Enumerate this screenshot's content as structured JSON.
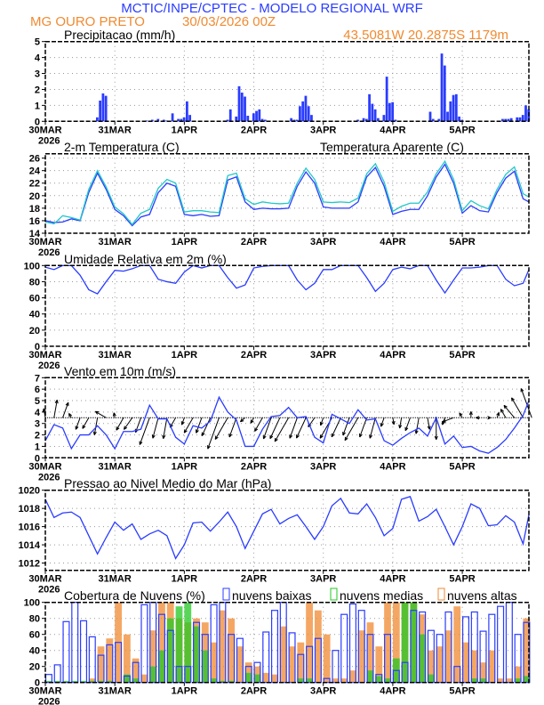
{
  "header": {
    "title": "MCTIC/INPE/CPTEC - MODELO REGIONAL WRF",
    "station": "MG OURO PRETO",
    "run": "30/03/2026 00Z",
    "location": "43.5081W 20.2875S 1179m",
    "title_color": "#2a3cff",
    "accent_color": "#f08a30"
  },
  "chart_data": [
    {
      "id": "precip",
      "type": "bar",
      "title": "Precipitacao (mm/h)",
      "ylim": [
        0,
        5
      ],
      "yticks": [
        0,
        1,
        2,
        3,
        4,
        5
      ],
      "x_unit": "hours since 30MAR 00Z",
      "x_step": 1,
      "color": "#2a3cff",
      "events": [
        [
          18,
          0.25
        ],
        [
          19,
          1.3
        ],
        [
          20,
          1.75
        ],
        [
          21,
          1.6
        ],
        [
          35,
          0.05
        ],
        [
          37,
          0.1
        ],
        [
          39,
          0.15
        ],
        [
          41,
          0.1
        ],
        [
          42,
          0.05
        ],
        [
          44,
          0.5
        ],
        [
          46,
          0.15
        ],
        [
          47,
          0.15
        ],
        [
          48,
          0.25
        ],
        [
          49,
          1.25
        ],
        [
          50,
          0.4
        ],
        [
          62,
          0.05
        ],
        [
          63,
          0.1
        ],
        [
          64,
          0.75
        ],
        [
          66,
          0.3
        ],
        [
          67,
          2.2
        ],
        [
          68,
          1.8
        ],
        [
          69,
          1.55
        ],
        [
          70,
          0.35
        ],
        [
          72,
          0.5
        ],
        [
          73,
          0.65
        ],
        [
          74,
          0.75
        ],
        [
          75,
          0.15
        ],
        [
          76,
          0.1
        ],
        [
          85,
          0.2
        ],
        [
          86,
          0.1
        ],
        [
          87,
          0.1
        ],
        [
          88,
          0.95
        ],
        [
          89,
          1.25
        ],
        [
          90,
          1.6
        ],
        [
          91,
          0.95
        ],
        [
          92,
          0.4
        ],
        [
          108,
          0.1
        ],
        [
          110,
          0.2
        ],
        [
          111,
          0.15
        ],
        [
          112,
          1.7
        ],
        [
          113,
          1.1
        ],
        [
          114,
          0.75
        ],
        [
          115,
          0.2
        ],
        [
          117,
          0.4
        ],
        [
          118,
          2.8
        ],
        [
          119,
          1.15
        ],
        [
          120,
          1.2
        ],
        [
          121,
          0.1
        ],
        [
          133,
          0.6
        ],
        [
          134,
          0.15
        ],
        [
          136,
          0.15
        ],
        [
          137,
          4.25
        ],
        [
          138,
          3.5
        ],
        [
          139,
          0.6
        ],
        [
          140,
          1.25
        ],
        [
          141,
          1.65
        ],
        [
          142,
          1.7
        ],
        [
          143,
          0.3
        ],
        [
          144,
          0.1
        ],
        [
          158,
          0.15
        ],
        [
          159,
          0.15
        ],
        [
          160,
          0.15
        ],
        [
          161,
          0.2
        ],
        [
          163,
          0.25
        ],
        [
          164,
          0.25
        ],
        [
          165,
          0.4
        ],
        [
          166,
          1.0
        ],
        [
          167,
          0.75
        ]
      ]
    },
    {
      "id": "temp",
      "type": "line",
      "title": "2-m Temperatura (C)",
      "ylim": [
        14,
        26.7
      ],
      "yticks": [
        14,
        16,
        18,
        20,
        22,
        24,
        26
      ],
      "x_step": 3,
      "series": [
        {
          "name": "Temperatura",
          "color": "#2a3cff",
          "values": [
            16,
            15.7,
            15.8,
            16.3,
            16,
            20.5,
            23.6,
            21,
            17.8,
            16.8,
            15.2,
            16.6,
            17,
            20.5,
            22,
            21.5,
            17,
            16.8,
            17,
            16.7,
            16.8,
            22.5,
            23,
            19,
            17.8,
            18,
            17.9,
            17.9,
            18,
            21.5,
            23.8,
            22,
            18.2,
            18,
            18,
            18,
            19,
            23,
            24.5,
            21.5,
            17,
            17.5,
            17.8,
            17.8,
            20,
            23,
            25,
            22,
            17.2,
            18.4,
            17.6,
            17.4,
            20.5,
            22.8,
            23.9,
            19.5,
            19
          ]
        },
        {
          "name": "Temperatura Aparente (C)",
          "color": "#22c8c8",
          "values": [
            15.8,
            15.5,
            16.8,
            16.5,
            16.1,
            21,
            24,
            21.4,
            18.2,
            17.1,
            15.4,
            17.2,
            17.8,
            21.2,
            22.6,
            22,
            17.4,
            17.6,
            17.6,
            17.4,
            17.3,
            23.2,
            23.6,
            19.5,
            18.6,
            19,
            18.8,
            18.7,
            18.8,
            22,
            24.4,
            22.6,
            19,
            18.9,
            19,
            18.9,
            19.6,
            23.5,
            25.1,
            22.2,
            17.5,
            18.3,
            18.8,
            18.8,
            20.6,
            23.5,
            25.5,
            22.6,
            17.6,
            19.2,
            18.4,
            17.9,
            21,
            23.4,
            24.6,
            20.3,
            19.8
          ]
        }
      ]
    },
    {
      "id": "humidity",
      "type": "line",
      "title": "Umidade Relativa em 2m (%)",
      "ylim": [
        0,
        100
      ],
      "yticks": [
        0,
        20,
        40,
        60,
        80,
        100
      ],
      "x_step": 3,
      "series": [
        {
          "name": "Umidade",
          "color": "#2a3cff",
          "values": [
            98,
            95,
            100,
            100,
            88,
            70,
            65,
            80,
            94,
            93,
            96,
            100,
            100,
            83,
            80,
            78,
            92,
            100,
            97,
            100,
            100,
            85,
            72,
            76,
            97,
            99,
            100,
            100,
            100,
            82,
            70,
            78,
            95,
            95,
            100,
            100,
            100,
            85,
            68,
            78,
            95,
            98,
            96,
            100,
            100,
            82,
            66,
            82,
            97,
            97,
            98,
            100,
            100,
            83,
            75,
            78,
            95
          ]
        }
      ]
    },
    {
      "id": "wind",
      "type": "line+vectors",
      "title": "Vento em 10m (m/s)",
      "ylim": [
        0,
        7
      ],
      "yticks": [
        0,
        1,
        2,
        3,
        4,
        5,
        6,
        7
      ],
      "x_step": 3,
      "series": [
        {
          "name": "Velocidade",
          "color": "#2a3cff",
          "values": [
            1.5,
            2.9,
            2.6,
            0.8,
            2,
            2,
            2.8,
            2,
            0.8,
            2.3,
            2.3,
            2.5,
            4.6,
            3.4,
            3.4,
            1.8,
            1.2,
            2.8,
            2.6,
            3.2,
            5.3,
            4,
            3.3,
            1,
            1,
            2.5,
            3.6,
            3.7,
            4.4,
            3.5,
            3.6,
            1.8,
            1.3,
            3.8,
            3.4,
            3,
            4.2,
            3.3,
            3.4,
            1.5,
            1.1,
            1.7,
            2.2,
            2.6,
            1.9,
            3.5,
            1.2,
            1.9,
            0.9,
            1,
            0.6,
            0.4,
            0.9,
            1.6,
            2.6,
            3.7,
            5
          ]
        }
      ],
      "direction_to_deg": [
        350,
        10,
        20,
        330,
        200,
        210,
        190,
        300,
        350,
        210,
        215,
        200,
        200,
        195,
        190,
        210,
        200,
        210,
        200,
        205,
        200,
        210,
        200,
        230,
        210,
        210,
        200,
        205,
        210,
        200,
        205,
        215,
        200,
        210,
        205,
        200,
        210,
        200,
        195,
        200,
        170,
        190,
        200,
        190,
        170,
        180,
        200,
        250,
        330,
        0,
        270,
        90,
        20,
        330,
        320,
        330,
        340
      ]
    },
    {
      "id": "pressure",
      "type": "line",
      "title": "Pressao ao Nivel Medio do Mar (hPa)",
      "ylim": [
        1011.2,
        1020
      ],
      "yticks": [
        1012,
        1014,
        1016,
        1018,
        1020
      ],
      "x_step": 3,
      "series": [
        {
          "name": "Pressao",
          "color": "#2a3cff",
          "values": [
            1019,
            1017,
            1017.5,
            1017.6,
            1017,
            1015,
            1013,
            1014.8,
            1016.5,
            1015.6,
            1016.3,
            1014.6,
            1015.2,
            1015.6,
            1015,
            1012.5,
            1014,
            1016.4,
            1016.5,
            1015.5,
            1016.5,
            1017.6,
            1016,
            1013.6,
            1015.5,
            1017.4,
            1017.9,
            1016.3,
            1016.9,
            1017.3,
            1016,
            1014.6,
            1016,
            1018.3,
            1019.1,
            1017.5,
            1017.4,
            1018.5,
            1017,
            1015,
            1015.8,
            1019,
            1019.3,
            1016.6,
            1017.1,
            1017.9,
            1016,
            1014,
            1016,
            1018.5,
            1018,
            1016.1,
            1016.2,
            1017.2,
            1016.5,
            1014.1,
            1017.3
          ]
        }
      ]
    },
    {
      "id": "clouds",
      "type": "bar",
      "title": "Cobertura de Nuvens (%)",
      "ylim": [
        0,
        100
      ],
      "yticks": [
        0,
        20,
        40,
        60,
        80,
        100
      ],
      "x_step": 3,
      "series": [
        {
          "name": "nuvens altas",
          "color": "#f08a30",
          "values": [
            0,
            0,
            0,
            0,
            0,
            5,
            45,
            55,
            100,
            60,
            30,
            10,
            65,
            100,
            100,
            80,
            75,
            80,
            75,
            50,
            90,
            80,
            45,
            25,
            20,
            12,
            10,
            70,
            45,
            50,
            100,
            90,
            60,
            5,
            5,
            15,
            65,
            75,
            45,
            100,
            100,
            100,
            100,
            85,
            40,
            45,
            65,
            95,
            50,
            40,
            25,
            40,
            5,
            5,
            20,
            80
          ]
        },
        {
          "name": "nuvens medias",
          "color": "#22c822",
          "values": [
            2,
            2,
            2,
            2,
            2,
            2,
            2,
            2,
            0,
            10,
            5,
            0,
            20,
            40,
            80,
            95,
            100,
            70,
            40,
            5,
            2,
            2,
            0,
            12,
            10,
            0,
            0,
            0,
            0,
            5,
            5,
            0,
            0,
            0,
            0,
            0,
            0,
            15,
            8,
            5,
            30,
            100,
            100,
            60,
            10,
            0,
            0,
            0,
            0,
            5,
            5,
            0,
            0,
            0,
            5,
            8
          ]
        },
        {
          "name": "nuvens baixas",
          "color": "#2a3cff",
          "values": [
            10,
            22,
            76,
            100,
            77,
            57,
            34,
            47,
            50,
            8,
            25,
            97,
            100,
            85,
            65,
            20,
            20,
            75,
            60,
            97,
            100,
            60,
            55,
            20,
            25,
            63,
            90,
            100,
            62,
            35,
            45,
            55,
            5,
            40,
            85,
            98,
            90,
            60,
            10,
            60,
            15,
            25,
            90,
            88,
            65,
            60,
            88,
            20,
            82,
            88,
            64,
            85,
            95,
            100,
            60,
            75
          ]
        }
      ]
    }
  ],
  "x_axis": {
    "labels": [
      "30MAR",
      "31MAR",
      "1APR",
      "2APR",
      "3APR",
      "4APR",
      "5APR"
    ],
    "year": "2026",
    "xlim_hours": [
      0,
      167
    ]
  }
}
